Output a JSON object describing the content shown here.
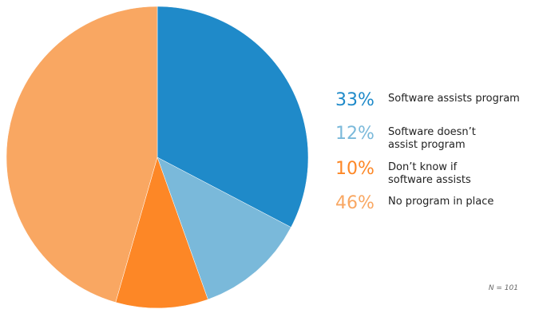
{
  "chart_data": {
    "type": "pie",
    "start_angle": "top",
    "direction": "clockwise",
    "slices": [
      {
        "label": "Software assists program",
        "value": 33,
        "value_label": "33%",
        "color": "#1f8ac9"
      },
      {
        "label": "Software doesn’t assist program",
        "value": 12,
        "value_label": "12%",
        "color": "#7ab9da"
      },
      {
        "label": "Don’t know if software assists",
        "value": 10,
        "value_label": "10%",
        "color": "#fd8726"
      },
      {
        "label": "No program in place",
        "value": 46,
        "value_label": "46%",
        "color": "#f9a762"
      }
    ],
    "legend": "right",
    "note": "N = 101"
  }
}
